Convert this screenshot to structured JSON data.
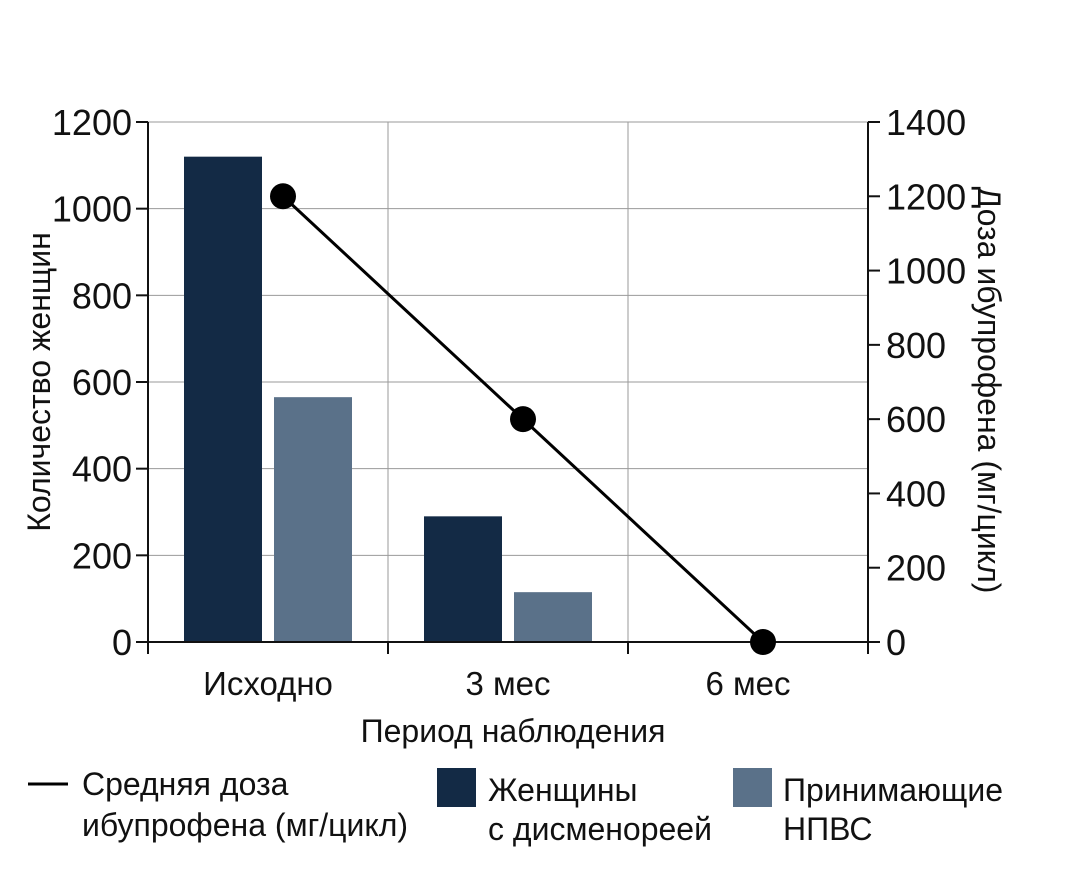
{
  "chart_data": {
    "type": "bar",
    "categories": [
      "Исходно",
      "3 мес",
      "6 мес"
    ],
    "series": [
      {
        "name": "Женщины с дисменореей",
        "kind": "bar",
        "axis": "left",
        "color": "#132a45",
        "values": [
          1120,
          290,
          0
        ]
      },
      {
        "name": "Принимающие НПВС",
        "kind": "bar",
        "axis": "left",
        "color": "#5a7189",
        "values": [
          565,
          115,
          0
        ]
      },
      {
        "name": "Средняя доза ибупрофена (мг/цикл)",
        "kind": "line",
        "axis": "right",
        "color": "#000000",
        "values": [
          1200,
          600,
          0
        ]
      }
    ],
    "xlabel": "Период наблюдения",
    "ylabel": "Количество женщин",
    "y2label": "Доза ибупрофена (мг/цикл)",
    "ylim": [
      0,
      1200
    ],
    "y2lim": [
      0,
      1400
    ],
    "yticks": [
      0,
      200,
      400,
      600,
      800,
      1000,
      1200
    ],
    "y2ticks": [
      0,
      200,
      400,
      600,
      800,
      1000,
      1200,
      1400
    ],
    "grid": true,
    "legend": {
      "placement": "bottom",
      "line_label": [
        "Средняя доза",
        "ибупрофена (мг/цикл)"
      ],
      "bar1_label": [
        "Женщины",
        "с дисменореей"
      ],
      "bar2_label": [
        "Принимающие",
        "НПВС"
      ]
    }
  }
}
